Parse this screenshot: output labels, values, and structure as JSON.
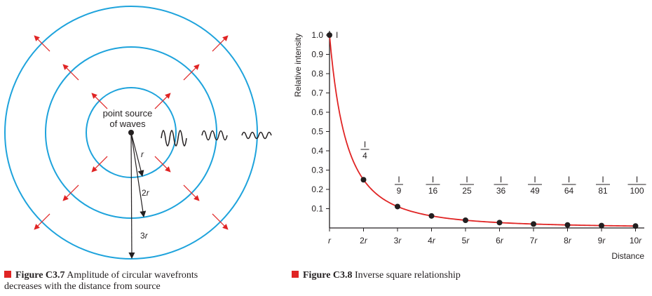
{
  "figure1": {
    "source_label_line1": "point source",
    "source_label_line2": "of waves",
    "radius_labels": [
      {
        "italic": "r",
        "prefix": ""
      },
      {
        "italic": "r",
        "prefix": "2"
      },
      {
        "italic": "r",
        "prefix": "3"
      }
    ],
    "caption_number": "Figure C3.7",
    "caption_text": " Amplitude of circular wavefronts",
    "caption_text_line2": "decreases with the distance from source",
    "colors": {
      "ring": "#1ea3dc",
      "arrow": "#e02424",
      "ink": "#231f20"
    }
  },
  "figure2": {
    "caption_number": "Figure C3.8",
    "caption_text": " Inverse square relationship",
    "colors": {
      "curve": "#e02424",
      "point": "#231f20"
    }
  },
  "chart_data": {
    "type": "line",
    "ylabel": "Relative intensity",
    "xlabel": "Distance",
    "ylim": [
      0,
      1.0
    ],
    "yticks": [
      "1.0",
      "0.9",
      "0.8",
      "0.7",
      "0.6",
      "0.5",
      "0.4",
      "0.3",
      "0.2",
      "0.1"
    ],
    "x_tick_labels": [
      {
        "num": "",
        "sym": "r"
      },
      {
        "num": "2",
        "sym": "r"
      },
      {
        "num": "3",
        "sym": "r"
      },
      {
        "num": "4",
        "sym": "r"
      },
      {
        "num": "5",
        "sym": "r"
      },
      {
        "num": "6",
        "sym": "r"
      },
      {
        "num": "7",
        "sym": "r"
      },
      {
        "num": "8",
        "sym": "r"
      },
      {
        "num": "9",
        "sym": "r"
      },
      {
        "num": "10",
        "sym": "r"
      }
    ],
    "x": [
      1,
      2,
      3,
      4,
      5,
      6,
      7,
      8,
      9,
      10
    ],
    "y": [
      1.0,
      0.25,
      0.111,
      0.0625,
      0.04,
      0.0278,
      0.0204,
      0.0156,
      0.0123,
      0.01
    ],
    "point_labels": [
      {
        "num": "I",
        "den": ""
      },
      {
        "num": "I",
        "den": "4"
      },
      {
        "num": "I",
        "den": "9"
      },
      {
        "num": "I",
        "den": "16"
      },
      {
        "num": "I",
        "den": "25"
      },
      {
        "num": "I",
        "den": "36"
      },
      {
        "num": "I",
        "den": "49"
      },
      {
        "num": "I",
        "den": "64"
      },
      {
        "num": "I",
        "den": "81"
      },
      {
        "num": "I",
        "den": "100"
      }
    ]
  }
}
